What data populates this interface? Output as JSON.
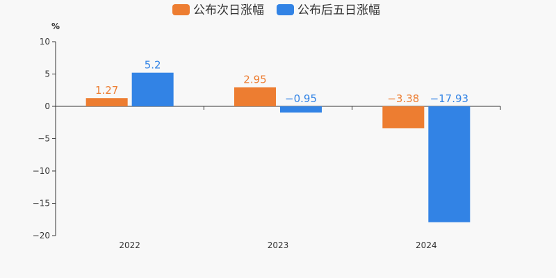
{
  "chart_data": {
    "type": "bar",
    "title": "",
    "ylabel": "%",
    "xlabel": "",
    "categories": [
      "2022",
      "2023",
      "2024"
    ],
    "series": [
      {
        "name": "公布次日涨幅",
        "values": [
          1.27,
          2.95,
          -3.38
        ],
        "value_labels": [
          "1.27",
          "2.95",
          "−3.38"
        ],
        "color": "#ed7d31"
      },
      {
        "name": "公布后五日涨幅",
        "values": [
          5.2,
          -0.95,
          -17.93
        ],
        "value_labels": [
          "5.2",
          "−0.95",
          "−17.93"
        ],
        "color": "#3283e5"
      }
    ],
    "ylim": [
      -20,
      10
    ],
    "yticks": [
      10,
      5,
      0,
      -5,
      -10,
      -15,
      -20
    ],
    "ytick_labels": [
      "10",
      "5",
      "0",
      "−5",
      "−10",
      "−15",
      "−20"
    ],
    "grid": false,
    "legend_position": "top-center"
  }
}
